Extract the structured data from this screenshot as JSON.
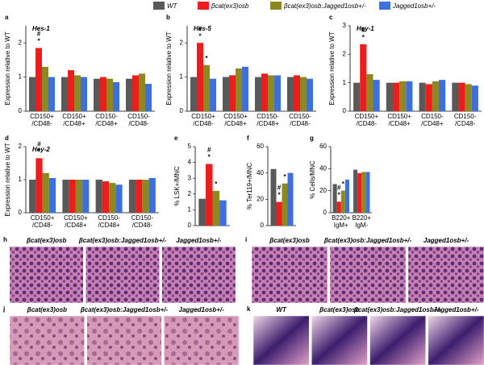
{
  "chart_data": [
    {
      "type": "bar",
      "label": "a",
      "title": "Hes-1",
      "ylabel": "Expression relative to WT",
      "categories": [
        [
          "CD150+",
          "/CD48-"
        ],
        [
          "CD150+",
          "/CD48+"
        ],
        [
          "CD150-",
          "/CD48+"
        ],
        [
          "CD150-",
          "/CD48-"
        ]
      ],
      "ylim": [
        0,
        2.5
      ],
      "yticks": [
        0,
        1,
        2
      ],
      "series": [
        {
          "name": "WT",
          "color": "#595959",
          "values": [
            1.0,
            1.0,
            0.95,
            0.95
          ]
        },
        {
          "name": "βcat(ex3)osb",
          "color": "#ee1c1c",
          "values": [
            1.85,
            1.2,
            1.0,
            1.05
          ]
        },
        {
          "name": "βcat(ex3)osb:Jagged1osb+/-",
          "color": "#8c8a1e",
          "values": [
            1.3,
            1.05,
            0.95,
            1.1
          ]
        },
        {
          "name": "Jagged1osb+/-",
          "color": "#3e6fe0",
          "values": [
            1.0,
            1.0,
            0.85,
            0.8
          ]
        }
      ],
      "annotations": [
        {
          "category": 0,
          "series": 1,
          "labels": [
            "#",
            "*"
          ]
        }
      ]
    },
    {
      "type": "bar",
      "label": "b",
      "title": "Hes-5",
      "ylabel": "Expression relative to WT",
      "categories": [
        [
          "CD150+",
          "/CD48-"
        ],
        [
          "CD150+",
          "/CD48+"
        ],
        [
          "CD150-",
          "/CD48+"
        ],
        [
          "CD150-",
          "/CD48-"
        ]
      ],
      "ylim": [
        0,
        2.5
      ],
      "yticks": [
        0,
        1,
        2
      ],
      "series": [
        {
          "name": "WT",
          "color": "#595959",
          "values": [
            1.0,
            1.0,
            1.0,
            1.0
          ]
        },
        {
          "name": "βcat(ex3)osb",
          "color": "#ee1c1c",
          "values": [
            2.0,
            1.05,
            1.1,
            1.05
          ]
        },
        {
          "name": "βcat(ex3)osb:Jagged1osb+/-",
          "color": "#8c8a1e",
          "values": [
            1.35,
            1.25,
            1.05,
            1.0
          ]
        },
        {
          "name": "Jagged1osb+/-",
          "color": "#3e6fe0",
          "values": [
            0.95,
            1.3,
            1.05,
            0.95
          ]
        }
      ],
      "annotations": [
        {
          "category": 0,
          "series": 1,
          "labels": [
            "#",
            "*"
          ]
        },
        {
          "category": 0,
          "series": 2,
          "labels": [
            "*"
          ]
        }
      ]
    },
    {
      "type": "bar",
      "label": "c",
      "title": "Hey-1",
      "ylabel": "Expression relative to WT",
      "categories": [
        [
          "CD150+",
          "/CD48-"
        ],
        [
          "CD150+",
          "/CD48+"
        ],
        [
          "CD150-",
          "/CD48+"
        ],
        [
          "CD150-",
          "/CD48-"
        ]
      ],
      "ylim": [
        0,
        3
      ],
      "yticks": [
        0,
        1,
        2,
        3
      ],
      "series": [
        {
          "name": "WT",
          "color": "#595959",
          "values": [
            1.0,
            1.0,
            1.0,
            1.0
          ]
        },
        {
          "name": "βcat(ex3)osb",
          "color": "#ee1c1c",
          "values": [
            2.35,
            1.0,
            0.95,
            1.0
          ]
        },
        {
          "name": "βcat(ex3)osb:Jagged1osb+/-",
          "color": "#8c8a1e",
          "values": [
            1.3,
            1.05,
            1.05,
            0.95
          ]
        },
        {
          "name": "Jagged1osb+/-",
          "color": "#3e6fe0",
          "values": [
            1.1,
            1.05,
            1.1,
            0.9
          ]
        }
      ],
      "annotations": [
        {
          "category": 0,
          "series": 1,
          "labels": [
            "#",
            "*"
          ]
        }
      ]
    },
    {
      "type": "bar",
      "label": "d",
      "title": "Hey-2",
      "ylabel": "Expression relative to WT",
      "categories": [
        [
          "CD150+",
          "/CD48-"
        ],
        [
          "CD150+",
          "/CD48+"
        ],
        [
          "CD150-",
          "/CD48+"
        ],
        [
          "CD150-",
          "/CD48-"
        ]
      ],
      "ylim": [
        0,
        2
      ],
      "yticks": [
        0,
        1,
        2
      ],
      "series": [
        {
          "name": "WT",
          "color": "#595959",
          "values": [
            1.0,
            1.0,
            1.0,
            1.0
          ]
        },
        {
          "name": "βcat(ex3)osb",
          "color": "#ee1c1c",
          "values": [
            1.65,
            1.0,
            0.95,
            1.0
          ]
        },
        {
          "name": "βcat(ex3)osb:Jagged1osb+/-",
          "color": "#8c8a1e",
          "values": [
            1.2,
            1.0,
            0.9,
            1.0
          ]
        },
        {
          "name": "Jagged1osb+/-",
          "color": "#3e6fe0",
          "values": [
            1.05,
            1.0,
            0.85,
            1.05
          ]
        }
      ],
      "annotations": [
        {
          "category": 0,
          "series": 1,
          "labels": [
            "#",
            "*"
          ]
        }
      ]
    },
    {
      "type": "bar",
      "label": "e",
      "ylabel": "% LSK+/MNC",
      "categories": [
        null
      ],
      "ylim": [
        0,
        5
      ],
      "yticks": [
        0,
        1,
        2,
        3,
        4,
        5
      ],
      "series": [
        {
          "name": "WT",
          "color": "#595959",
          "values": [
            1.7
          ]
        },
        {
          "name": "βcat(ex3)osb",
          "color": "#ee1c1c",
          "values": [
            3.9
          ]
        },
        {
          "name": "βcat(ex3)osb:Jagged1osb+/-",
          "color": "#8c8a1e",
          "values": [
            2.2
          ]
        },
        {
          "name": "Jagged1osb+/-",
          "color": "#3e6fe0",
          "values": [
            1.6
          ]
        }
      ],
      "annotations": [
        {
          "category": 0,
          "series": 1,
          "labels": [
            "#",
            "*"
          ]
        },
        {
          "category": 0,
          "series": 2,
          "labels": [
            "*"
          ]
        }
      ]
    },
    {
      "type": "bar",
      "label": "f",
      "ylabel": "% Ter119+/MNC",
      "categories": [
        null
      ],
      "ylim": [
        0,
        60
      ],
      "yticks": [
        0,
        20,
        40,
        60
      ],
      "series": [
        {
          "name": "WT",
          "color": "#595959",
          "values": [
            43
          ]
        },
        {
          "name": "βcat(ex3)osb",
          "color": "#ee1c1c",
          "values": [
            18
          ]
        },
        {
          "name": "βcat(ex3)osb:Jagged1osb+/-",
          "color": "#8c8a1e",
          "values": [
            32
          ]
        },
        {
          "name": "Jagged1osb+/-",
          "color": "#3e6fe0",
          "values": [
            40
          ]
        }
      ],
      "annotations": [
        {
          "category": 0,
          "series": 1,
          "labels": [
            "#",
            "*"
          ]
        },
        {
          "category": 0,
          "series": 2,
          "labels": [
            "*"
          ]
        }
      ]
    },
    {
      "type": "bar",
      "label": "g",
      "ylabel": "% Cells/MNC",
      "categories": [
        [
          "B220+",
          "IgM+"
        ],
        [
          "B220+",
          "IgM-"
        ]
      ],
      "ylim": [
        0,
        60
      ],
      "yticks": [
        0,
        20,
        40,
        60
      ],
      "series": [
        {
          "name": "WT",
          "color": "#595959",
          "values": [
            26,
            39
          ]
        },
        {
          "name": "βcat(ex3)osb",
          "color": "#ee1c1c",
          "values": [
            10,
            36
          ]
        },
        {
          "name": "βcat(ex3)osb:Jagged1osb+/-",
          "color": "#8c8a1e",
          "values": [
            20,
            37
          ]
        },
        {
          "name": "Jagged1osb+/-",
          "color": "#3e6fe0",
          "values": [
            30,
            37
          ]
        }
      ],
      "annotations": [
        {
          "category": 0,
          "series": 1,
          "labels": [
            "#",
            "*"
          ]
        },
        {
          "category": 0,
          "series": 2,
          "labels": [
            "*"
          ]
        }
      ]
    }
  ],
  "images": [
    {
      "label": "h",
      "captions": [
        "βcat(ex3)osb",
        "βcat(ex3)osb:Jagged1osb+/-",
        "Jagged1osb+/-"
      ]
    },
    {
      "label": "i",
      "captions": [
        "βcat(ex3)osb",
        "βcat(ex3)osb:Jagged1osb+/-",
        "Jagged1osb+/-"
      ]
    },
    {
      "label": "j",
      "captions": [
        "βcat(ex3)osb",
        "βcat(ex3)osb:Jagged1osb+/-",
        "Jagged1osb+/-"
      ]
    },
    {
      "label": "k",
      "captions": [
        "WT",
        "βcat(ex3)osb",
        "βcat(ex3)osb:Jagged1osb+/-",
        "Jagged1osb+/-"
      ]
    }
  ]
}
